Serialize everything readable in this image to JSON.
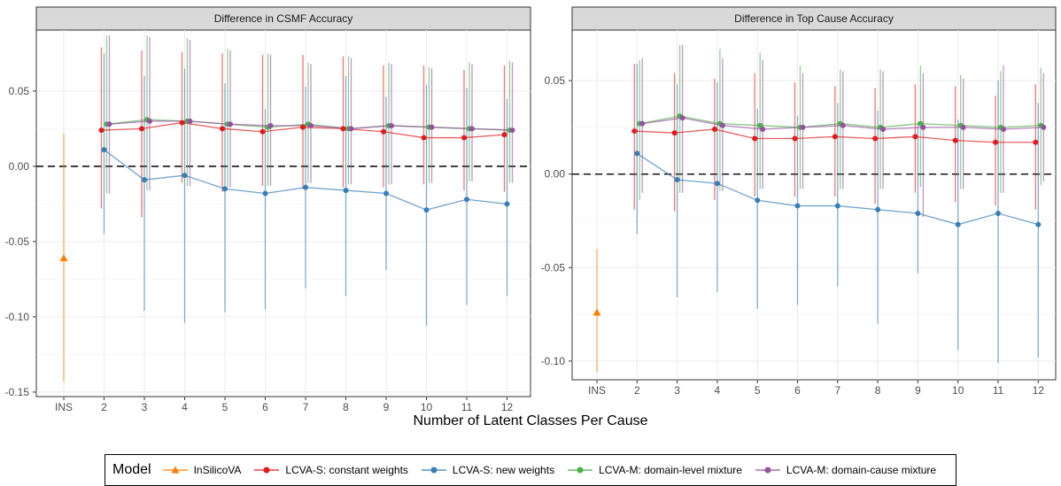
{
  "x_axis_title": "Number of Latent Classes Per Cause",
  "legend": {
    "title": "Model",
    "items": [
      {
        "label": "InSilicoVA",
        "color": "#ff7f00",
        "shape": "triangle"
      },
      {
        "label": "LCVA-S: constant weights",
        "color": "#e41a1c",
        "shape": "circle"
      },
      {
        "label": "LCVA-S: new weights",
        "color": "#377eb8",
        "shape": "circle"
      },
      {
        "label": "LCVA-M: domain-level mixture",
        "color": "#4daf4a",
        "shape": "circle"
      },
      {
        "label": "LCVA-M: domain-cause mixture",
        "color": "#984ea3",
        "shape": "circle"
      }
    ]
  },
  "chart_data": [
    {
      "type": "line",
      "title": "Difference in CSMF Accuracy",
      "categories": [
        "INS",
        "2",
        "3",
        "4",
        "5",
        "6",
        "7",
        "8",
        "9",
        "10",
        "11",
        "12"
      ],
      "ylim": [
        -0.153,
        0.0905
      ],
      "yticks": [
        -0.15,
        -0.1,
        -0.05,
        0.0,
        0.05
      ],
      "ytick_labels": [
        "-0.15",
        "-0.10",
        "-0.05",
        "0.00",
        "0.05"
      ],
      "reference_line": 0,
      "grid": true,
      "series": [
        {
          "name": "InSilicoVA",
          "color": "#ff7f00",
          "x": [
            "INS"
          ],
          "values": [
            -0.061
          ],
          "lower": [
            -0.143
          ],
          "upper": [
            0.022
          ]
        },
        {
          "name": "LCVA-S: constant weights",
          "color": "#e41a1c",
          "x": [
            "2",
            "3",
            "4",
            "5",
            "6",
            "7",
            "8",
            "9",
            "10",
            "11",
            "12"
          ],
          "values": [
            0.024,
            0.025,
            0.029,
            0.025,
            0.023,
            0.026,
            0.025,
            0.023,
            0.019,
            0.019,
            0.021
          ],
          "lower": [
            -0.028,
            -0.034,
            -0.011,
            -0.017,
            -0.013,
            -0.015,
            -0.014,
            -0.014,
            -0.012,
            -0.016,
            -0.017
          ],
          "upper": [
            0.079,
            0.077,
            0.076,
            0.075,
            0.074,
            0.074,
            0.073,
            0.067,
            0.067,
            0.064,
            0.067
          ]
        },
        {
          "name": "LCVA-S: new weights",
          "color": "#377eb8",
          "x": [
            "2",
            "3",
            "4",
            "5",
            "6",
            "7",
            "8",
            "9",
            "10",
            "11",
            "12"
          ],
          "values": [
            0.011,
            -0.009,
            -0.006,
            -0.015,
            -0.018,
            -0.014,
            -0.016,
            -0.018,
            -0.029,
            -0.022,
            -0.025
          ],
          "lower": [
            -0.045,
            -0.096,
            -0.104,
            -0.097,
            -0.095,
            -0.081,
            -0.086,
            -0.069,
            -0.106,
            -0.092,
            -0.086
          ],
          "upper": [
            0.075,
            0.06,
            0.065,
            0.055,
            0.038,
            0.053,
            0.06,
            0.046,
            0.054,
            0.052,
            0.045
          ]
        },
        {
          "name": "LCVA-M: domain-level mixture",
          "color": "#4daf4a",
          "x": [
            "2",
            "3",
            "4",
            "5",
            "6",
            "7",
            "8",
            "9",
            "10",
            "11",
            "12"
          ],
          "values": [
            0.028,
            0.031,
            0.03,
            0.028,
            0.026,
            0.028,
            0.025,
            0.027,
            0.026,
            0.025,
            0.024
          ],
          "lower": [
            -0.018,
            -0.016,
            -0.013,
            -0.014,
            -0.013,
            -0.011,
            -0.012,
            -0.012,
            -0.011,
            -0.01,
            -0.011
          ],
          "upper": [
            0.087,
            0.087,
            0.085,
            0.078,
            0.075,
            0.069,
            0.073,
            0.069,
            0.066,
            0.069,
            0.07
          ]
        },
        {
          "name": "LCVA-M: domain-cause mixture",
          "color": "#984ea3",
          "x": [
            "2",
            "3",
            "4",
            "5",
            "6",
            "7",
            "8",
            "9",
            "10",
            "11",
            "12"
          ],
          "values": [
            0.028,
            0.03,
            0.03,
            0.028,
            0.027,
            0.027,
            0.025,
            0.027,
            0.026,
            0.025,
            0.024
          ],
          "lower": [
            -0.018,
            -0.016,
            -0.013,
            -0.014,
            -0.013,
            -0.011,
            -0.012,
            -0.012,
            -0.011,
            -0.01,
            -0.011
          ],
          "upper": [
            0.087,
            0.086,
            0.084,
            0.077,
            0.074,
            0.068,
            0.072,
            0.068,
            0.065,
            0.068,
            0.069
          ]
        }
      ]
    },
    {
      "type": "line",
      "title": "Difference in Top Cause Accuracy",
      "categories": [
        "INS",
        "2",
        "3",
        "4",
        "5",
        "6",
        "7",
        "8",
        "9",
        "10",
        "11",
        "12"
      ],
      "ylim": [
        -0.11,
        0.077
      ],
      "yticks": [
        -0.1,
        -0.05,
        0.0,
        0.05
      ],
      "ytick_labels": [
        "-0.10",
        "-0.05",
        "0.00",
        "0.05"
      ],
      "reference_line": 0,
      "grid": true,
      "series": [
        {
          "name": "InSilicoVA",
          "color": "#ff7f00",
          "x": [
            "INS"
          ],
          "values": [
            -0.074
          ],
          "lower": [
            -0.106
          ],
          "upper": [
            -0.04
          ]
        },
        {
          "name": "LCVA-S: constant weights",
          "color": "#e41a1c",
          "x": [
            "2",
            "3",
            "4",
            "5",
            "6",
            "7",
            "8",
            "9",
            "10",
            "11",
            "12"
          ],
          "values": [
            0.023,
            0.022,
            0.024,
            0.019,
            0.019,
            0.02,
            0.019,
            0.02,
            0.018,
            0.017,
            0.017
          ],
          "lower": [
            -0.019,
            -0.02,
            -0.014,
            -0.012,
            -0.012,
            -0.012,
            -0.016,
            -0.01,
            -0.015,
            -0.017,
            -0.019
          ],
          "upper": [
            0.059,
            0.054,
            0.051,
            0.054,
            0.049,
            0.047,
            0.046,
            0.048,
            0.047,
            0.042,
            0.048
          ]
        },
        {
          "name": "LCVA-S: new weights",
          "color": "#377eb8",
          "x": [
            "2",
            "3",
            "4",
            "5",
            "6",
            "7",
            "8",
            "9",
            "10",
            "11",
            "12"
          ],
          "values": [
            0.011,
            -0.003,
            -0.005,
            -0.014,
            -0.017,
            -0.017,
            -0.019,
            -0.021,
            -0.027,
            -0.021,
            -0.027
          ],
          "lower": [
            -0.032,
            -0.066,
            -0.063,
            -0.072,
            -0.07,
            -0.06,
            -0.08,
            -0.053,
            -0.094,
            -0.101,
            -0.098
          ],
          "upper": [
            0.059,
            0.048,
            0.049,
            0.035,
            0.031,
            0.038,
            0.034,
            0.028,
            0.029,
            0.05,
            0.038
          ]
        },
        {
          "name": "LCVA-M: domain-level mixture",
          "color": "#4daf4a",
          "x": [
            "2",
            "3",
            "4",
            "5",
            "6",
            "7",
            "8",
            "9",
            "10",
            "11",
            "12"
          ],
          "values": [
            0.027,
            0.031,
            0.027,
            0.026,
            0.025,
            0.027,
            0.025,
            0.027,
            0.026,
            0.025,
            0.026
          ],
          "lower": [
            -0.014,
            -0.01,
            -0.009,
            -0.008,
            -0.008,
            -0.008,
            -0.008,
            -0.007,
            -0.008,
            -0.01,
            -0.006
          ],
          "upper": [
            0.061,
            0.069,
            0.067,
            0.065,
            0.058,
            0.056,
            0.056,
            0.058,
            0.053,
            0.055,
            0.057
          ]
        },
        {
          "name": "LCVA-M: domain-cause mixture",
          "color": "#984ea3",
          "x": [
            "2",
            "3",
            "4",
            "5",
            "6",
            "7",
            "8",
            "9",
            "10",
            "11",
            "12"
          ],
          "values": [
            0.027,
            0.03,
            0.026,
            0.024,
            0.025,
            0.026,
            0.024,
            0.025,
            0.025,
            0.024,
            0.025
          ],
          "lower": [
            -0.01,
            -0.01,
            -0.009,
            -0.008,
            -0.008,
            -0.008,
            -0.008,
            -0.023,
            -0.008,
            -0.01,
            -0.004
          ],
          "upper": [
            0.062,
            0.069,
            0.062,
            0.061,
            0.054,
            0.055,
            0.055,
            0.054,
            0.051,
            0.058,
            0.054
          ]
        }
      ]
    }
  ]
}
